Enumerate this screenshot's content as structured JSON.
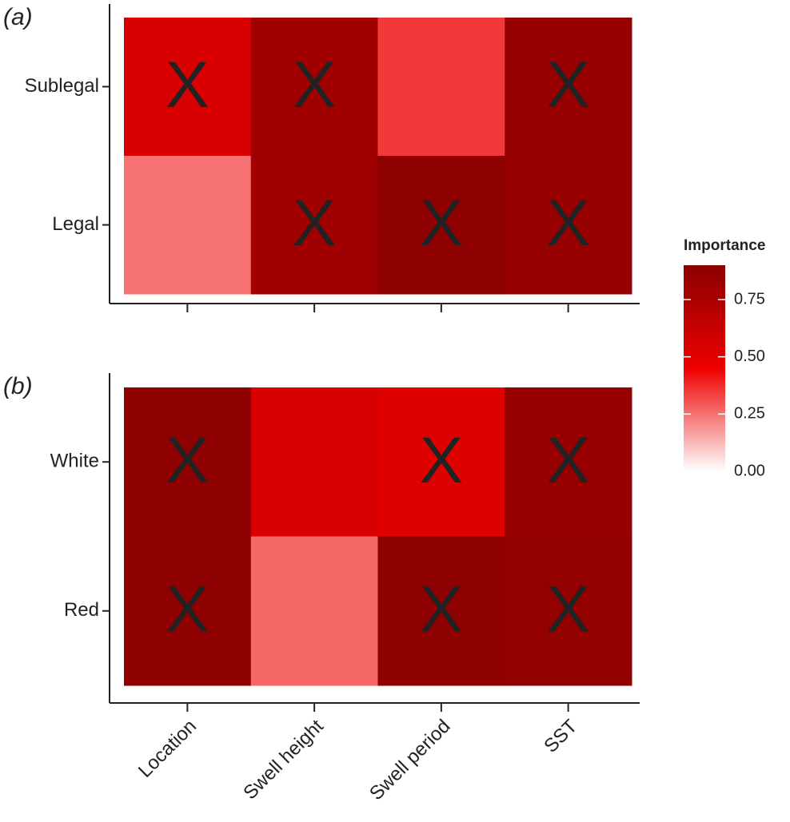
{
  "chart_data": [
    {
      "type": "heatmap",
      "panel_label": "(a)",
      "categories": [
        null,
        null,
        null,
        null
      ],
      "rows": [
        "Sublegal",
        "Legal"
      ],
      "values": [
        [
          0.55,
          0.8,
          0.35,
          0.85
        ],
        [
          0.25,
          0.8,
          0.88,
          0.85
        ]
      ],
      "labels": [
        [
          "X",
          "X",
          null,
          "X"
        ],
        [
          null,
          "X",
          "X",
          "X"
        ]
      ]
    },
    {
      "type": "heatmap",
      "panel_label": "(b)",
      "categories": [
        "Location",
        "Swell height",
        "Swell period",
        "SST"
      ],
      "rows": [
        "White",
        "Red"
      ],
      "values": [
        [
          0.88,
          0.55,
          0.52,
          0.85
        ],
        [
          0.88,
          0.27,
          0.88,
          0.87
        ]
      ],
      "labels": [
        [
          "X",
          null,
          "X",
          "X"
        ],
        [
          "X",
          null,
          "X",
          "X"
        ]
      ]
    }
  ],
  "colorbar": {
    "title": "Importance",
    "lim": [
      0,
      0.9
    ],
    "ticks": [
      {
        "value": 0,
        "label": "0.00"
      },
      {
        "value": 0.25,
        "label": "0.25"
      },
      {
        "value": 0.5,
        "label": "0.50"
      },
      {
        "value": 0.75,
        "label": "0.75"
      }
    ],
    "colors": [
      "#ffffff",
      "#ee0000",
      "#8b0000"
    ]
  }
}
